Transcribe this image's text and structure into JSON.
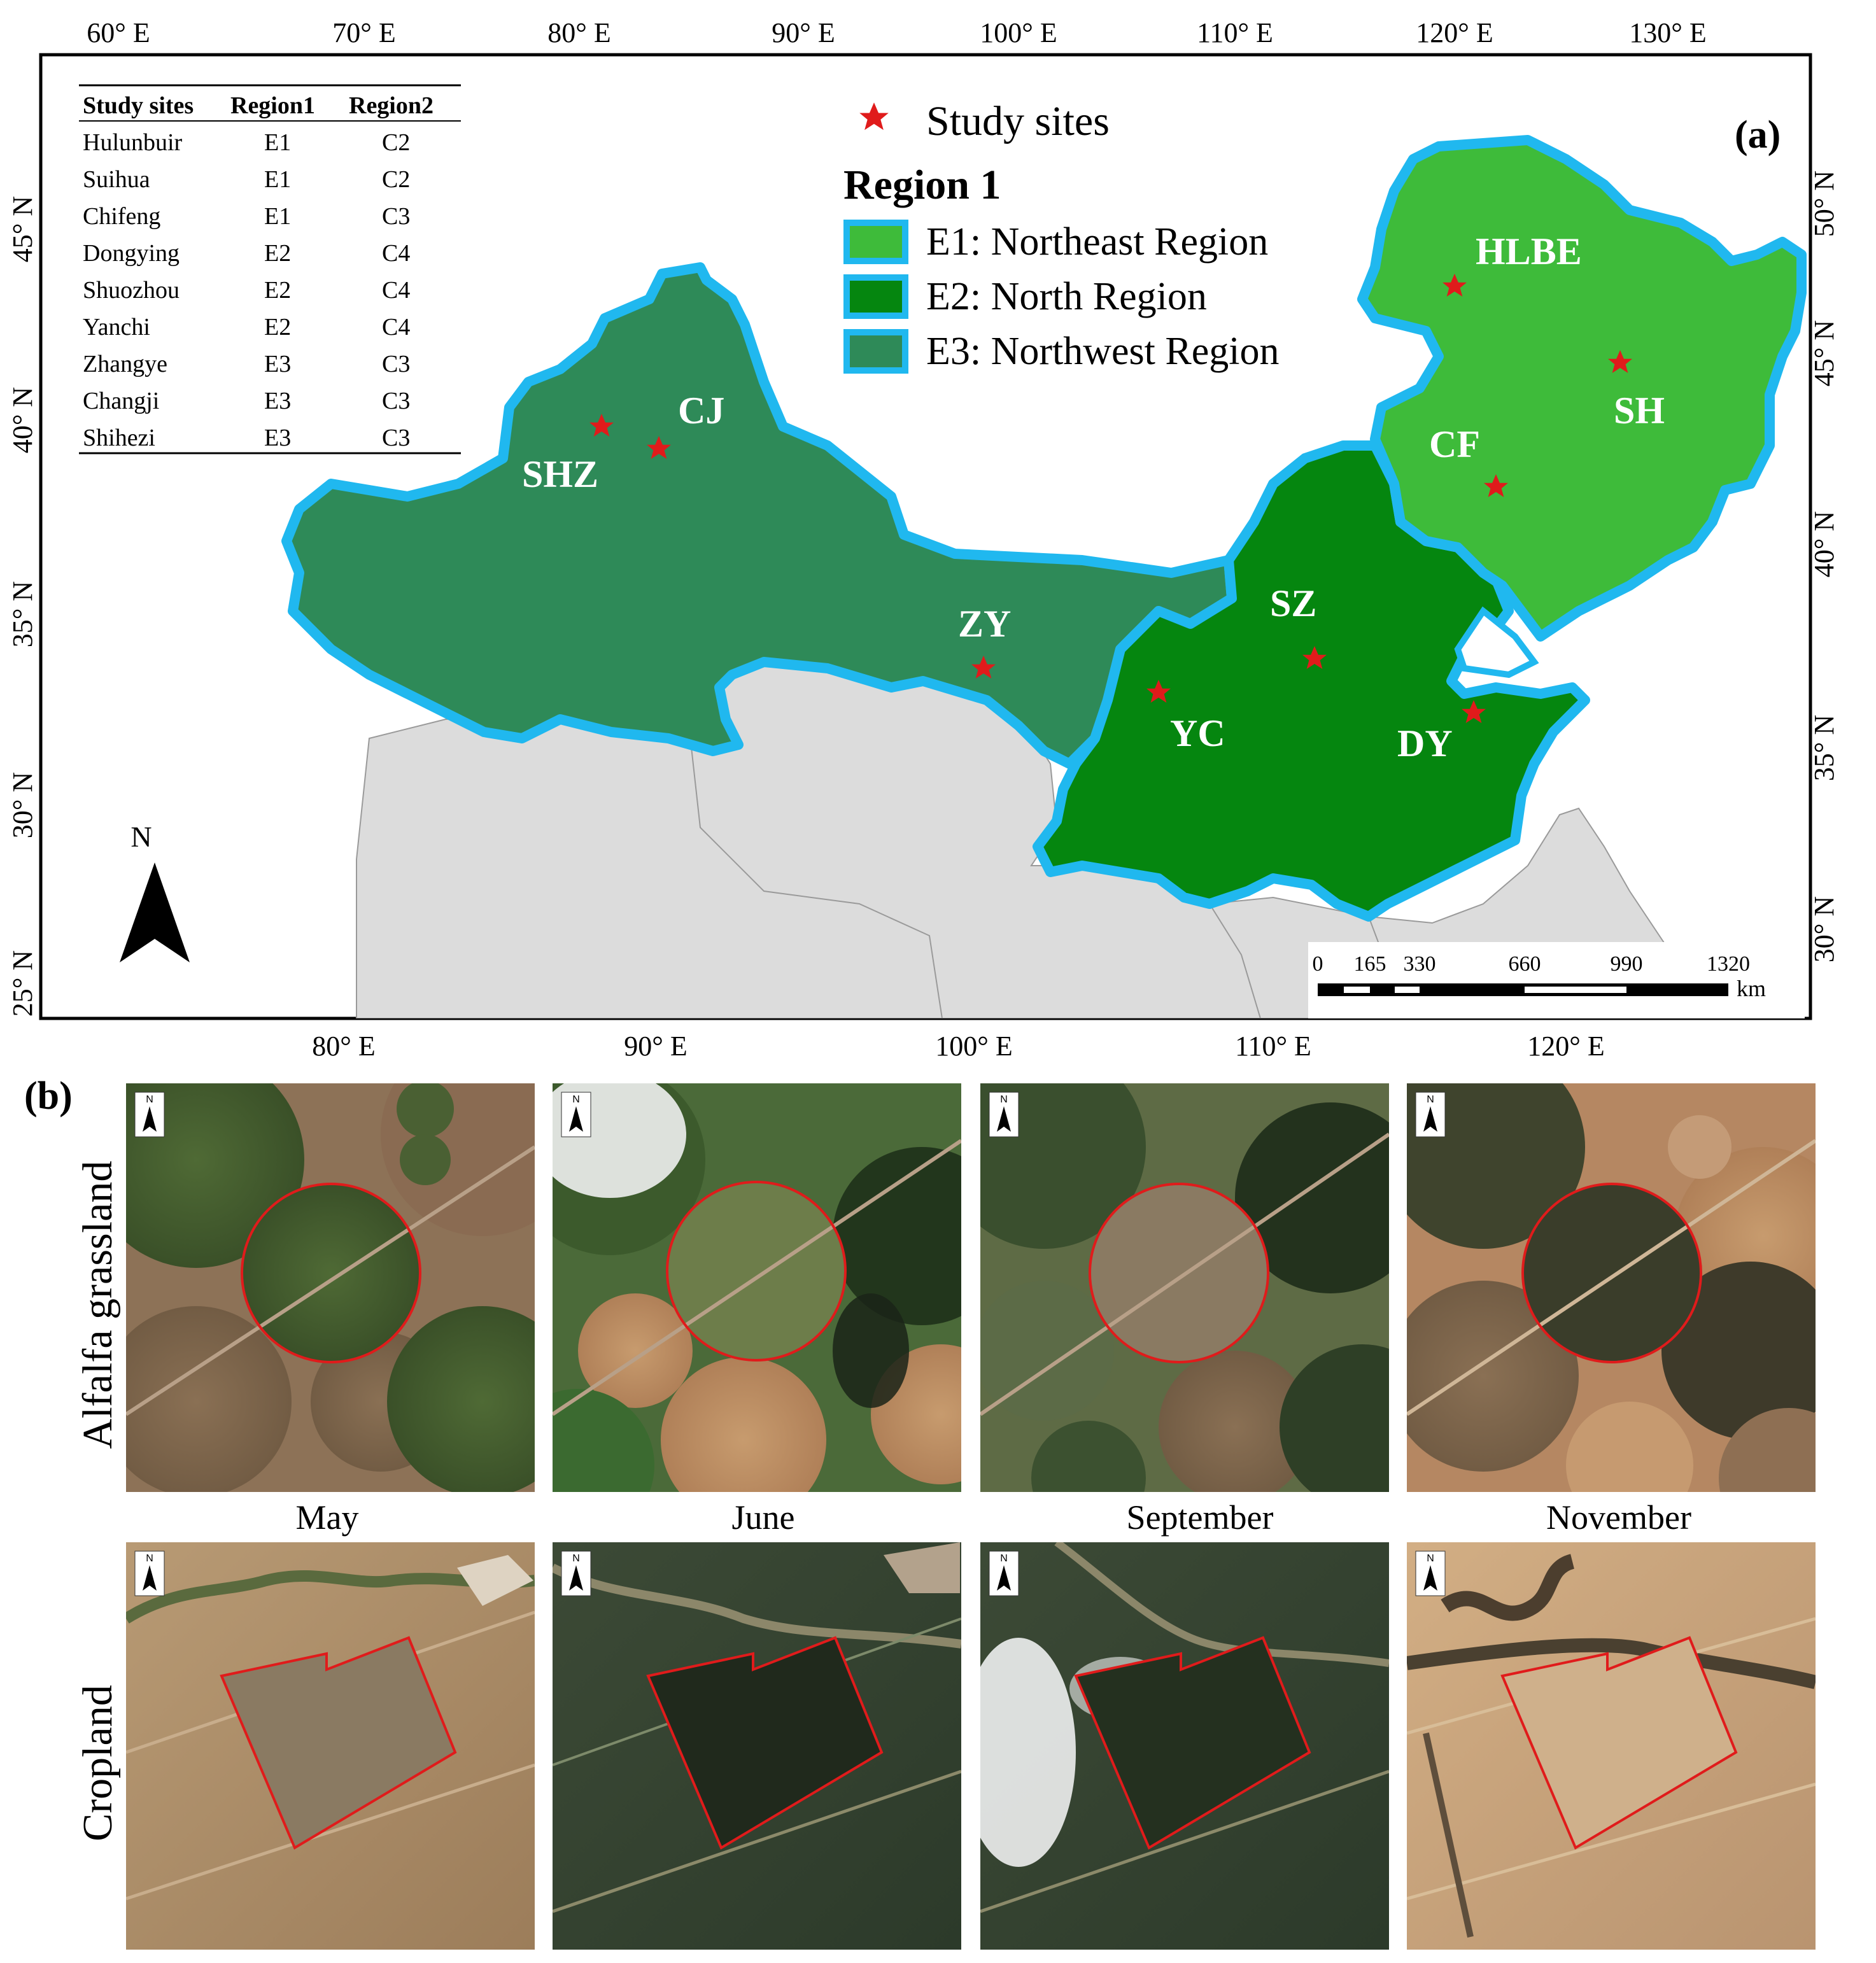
{
  "panel_a": {
    "label": "(a)",
    "top_longitudes": [
      "60° E",
      "70° E",
      "80° E",
      "90° E",
      "100° E",
      "110° E",
      "120° E",
      "130° E"
    ],
    "bottom_longitudes": [
      "80° E",
      "90° E",
      "100° E",
      "110° E",
      "120° E"
    ],
    "left_latitudes": [
      "45° N",
      "40° N",
      "35° N",
      "30° N",
      "25° N"
    ],
    "right_latitudes": [
      "50° N",
      "45° N",
      "40° N",
      "35° N",
      "30° N"
    ],
    "table": {
      "headers": [
        "Study sites",
        "Region1",
        "Region2"
      ],
      "rows": [
        [
          "Hulunbuir",
          "E1",
          "C2"
        ],
        [
          "Suihua",
          "E1",
          "C2"
        ],
        [
          "Chifeng",
          "E1",
          "C3"
        ],
        [
          "Dongying",
          "E2",
          "C4"
        ],
        [
          "Shuozhou",
          "E2",
          "C4"
        ],
        [
          "Yanchi",
          "E2",
          "C4"
        ],
        [
          "Zhangye",
          "E3",
          "C3"
        ],
        [
          "Changji",
          "E3",
          "C3"
        ],
        [
          "Shihezi",
          "E3",
          "C3"
        ]
      ]
    },
    "legend": {
      "star_label": "Study sites",
      "region_title": "Region 1",
      "items": [
        {
          "label": "E1: Northeast Region",
          "color": "#3ebb3a"
        },
        {
          "label": "E2: North Region",
          "color": "#05860f"
        },
        {
          "label": "E3: Northwest Region",
          "color": "#2e8a58"
        }
      ],
      "outline_color": "#20b8ef",
      "star_color": "#e01b1b"
    },
    "sites": [
      "HLBE",
      "SH",
      "CF",
      "CJ",
      "SHZ",
      "ZY",
      "SZ",
      "YC",
      "DY"
    ],
    "north_arrow_label": "N",
    "scale_bar": {
      "ticks": [
        "0",
        "165",
        "330",
        "660",
        "990",
        "1320"
      ],
      "unit": "km"
    },
    "background_color": "#dcdcdc"
  },
  "panel_b": {
    "label": "(b)",
    "row_labels": [
      "Alfalfa grassland",
      "Cropland"
    ],
    "months": [
      "May",
      "June",
      "September",
      "November"
    ],
    "north_label": "N",
    "outline_color": "#e01b1b"
  }
}
